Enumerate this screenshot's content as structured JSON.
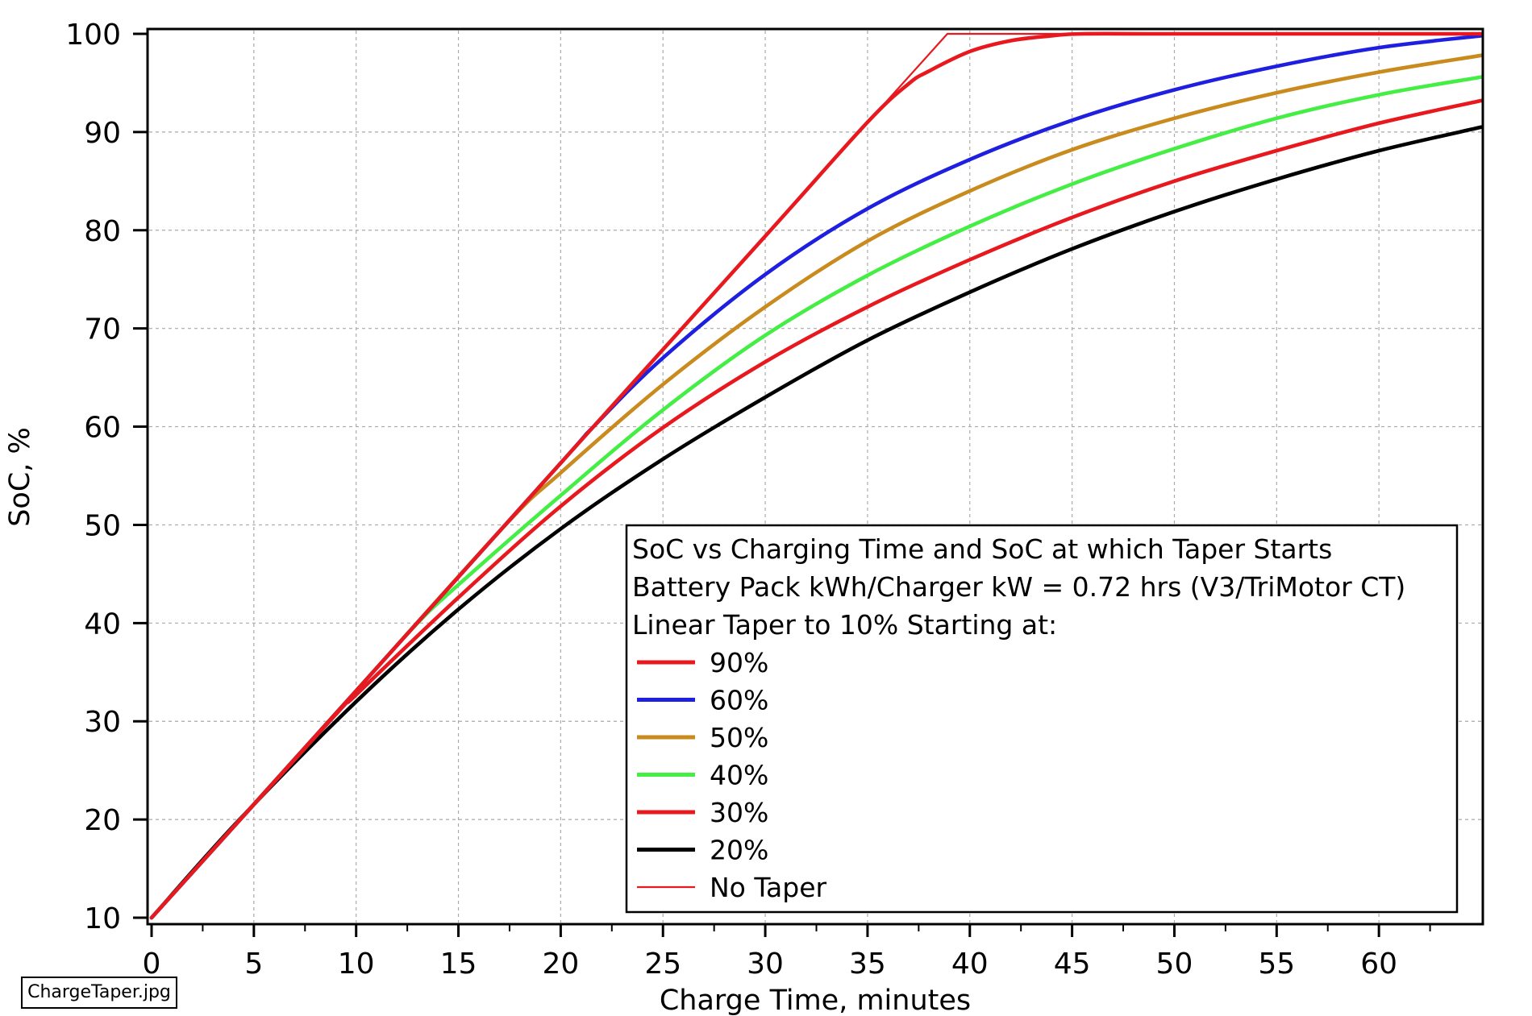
{
  "chart_data": {
    "type": "line",
    "xlabel": "Charge Time, minutes",
    "ylabel": "SoC, %",
    "xlim": [
      0,
      65
    ],
    "ylim": [
      10,
      100
    ],
    "x_ticks": [
      0,
      5,
      10,
      15,
      20,
      25,
      30,
      35,
      40,
      45,
      50,
      55,
      60
    ],
    "y_ticks": [
      10,
      20,
      30,
      40,
      50,
      60,
      70,
      80,
      90,
      100
    ],
    "grid": true,
    "legend": {
      "placement": "bottom-right",
      "title_lines": [
        "SoC vs Charging Time and SoC at which Taper Starts",
        "Battery Pack kWh/Charger kW = 0.72 hrs (V3/TriMotor CT)",
        "Linear Taper to 10% Starting at:"
      ]
    },
    "series": [
      {
        "name": "90%",
        "color": "#e8191e",
        "width": "thick",
        "x": [
          0,
          10,
          20,
          30,
          35,
          37,
          38,
          40,
          42,
          44,
          45.5,
          50,
          60,
          65
        ],
        "y": [
          10,
          33.1,
          56.3,
          79.4,
          91,
          94.9,
          96.2,
          98.2,
          99.3,
          99.8,
          100,
          100,
          100,
          100
        ]
      },
      {
        "name": "60%",
        "color": "#1f1fe0",
        "width": "thick",
        "x": [
          0,
          10,
          20,
          21.6,
          25,
          30,
          35,
          40,
          45,
          50,
          55,
          60,
          65
        ],
        "y": [
          10,
          33.1,
          56.3,
          60,
          67,
          75.5,
          82.2,
          87.2,
          91.2,
          94.3,
          96.7,
          98.6,
          99.8
        ]
      },
      {
        "name": "50%",
        "color": "#c98a1e",
        "width": "thick",
        "x": [
          0,
          10,
          17.3,
          20,
          25,
          30,
          35,
          40,
          45,
          50,
          55,
          60,
          65
        ],
        "y": [
          10,
          33.1,
          50,
          55.3,
          64.3,
          72.2,
          78.9,
          84,
          88.2,
          91.4,
          94,
          96.1,
          97.8
        ]
      },
      {
        "name": "40%",
        "color": "#44ee44",
        "width": "thick",
        "x": [
          0,
          10,
          13,
          15,
          20,
          25,
          30,
          35,
          40,
          45,
          50,
          55,
          60,
          65
        ],
        "y": [
          10,
          33.1,
          40,
          43.9,
          53,
          61.7,
          69.3,
          75.4,
          80.4,
          84.7,
          88.3,
          91.4,
          93.8,
          95.6
        ]
      },
      {
        "name": "30%",
        "color": "#e8191e",
        "width": "thick",
        "x": [
          0,
          8.7,
          10,
          15,
          20,
          25,
          30,
          35,
          40,
          45,
          50,
          55,
          60,
          65
        ],
        "y": [
          10,
          30,
          32.7,
          42.6,
          51.9,
          59.9,
          66.6,
          72.2,
          77,
          81.3,
          85,
          88.1,
          90.9,
          93.2
        ]
      },
      {
        "name": "20%",
        "color": "#000000",
        "width": "thick",
        "x": [
          0,
          4.3,
          10,
          15,
          20,
          25,
          30,
          35,
          40,
          45,
          50,
          55,
          60,
          65
        ],
        "y": [
          10,
          20,
          32,
          41.4,
          49.6,
          56.7,
          63,
          68.8,
          73.7,
          78.1,
          81.9,
          85.2,
          88.1,
          90.5
        ]
      },
      {
        "name": "No Taper",
        "color": "#e8191e",
        "width": "thin",
        "x": [
          0,
          38.9,
          65
        ],
        "y": [
          10,
          100,
          100
        ]
      }
    ]
  },
  "file_label": "ChargeTaper.jpg"
}
